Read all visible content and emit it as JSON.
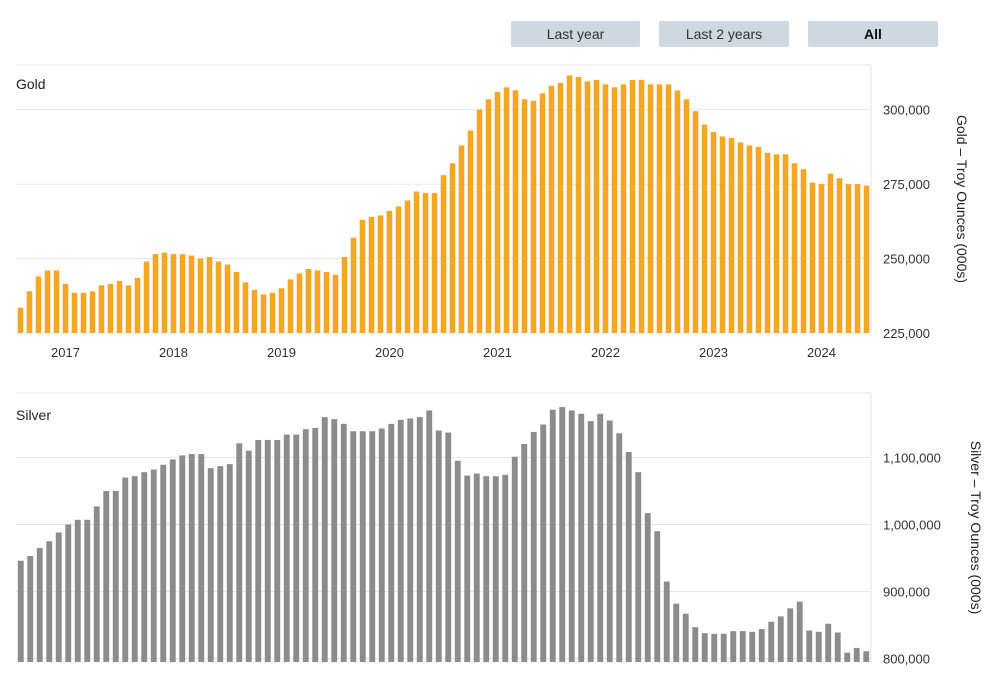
{
  "range_selector": {
    "buttons": [
      {
        "label": "Last year",
        "active": false
      },
      {
        "label": "Last 2 years",
        "active": false
      },
      {
        "label": "All",
        "active": true
      }
    ]
  },
  "chart_data": [
    {
      "type": "bar",
      "title": "Gold",
      "ylabel": "Gold – Troy Ounces (000s)",
      "color": "#f5a623",
      "ylim": [
        225000,
        315000
      ],
      "yticks": [
        225000,
        250000,
        275000,
        300000
      ],
      "ytick_labels": [
        "225,000",
        "250,000",
        "275,000",
        "300,000"
      ],
      "xticks": [
        "2017",
        "2018",
        "2019",
        "2020",
        "2021",
        "2022",
        "2023",
        "2024"
      ],
      "values": [
        233500,
        239000,
        244000,
        246000,
        246000,
        241500,
        238500,
        238500,
        239000,
        241000,
        241500,
        242500,
        241000,
        243500,
        249000,
        251500,
        252000,
        251500,
        251500,
        251000,
        250000,
        250500,
        249000,
        248000,
        245500,
        242000,
        239500,
        238000,
        238500,
        240000,
        243000,
        245000,
        246500,
        246000,
        245500,
        244500,
        250500,
        257000,
        263000,
        264000,
        264500,
        266000,
        267500,
        269500,
        272500,
        272000,
        272000,
        278000,
        282000,
        288000,
        293000,
        300000,
        303500,
        306000,
        307500,
        306500,
        303500,
        303000,
        305500,
        308000,
        309000,
        311500,
        311000,
        309500,
        310000,
        308500,
        307500,
        308500,
        310000,
        310000,
        308500,
        308500,
        308500,
        306500,
        303500,
        299500,
        295000,
        292500,
        291000,
        290500,
        289000,
        288000,
        287500,
        285500,
        285000,
        285000,
        282000,
        280000,
        275500,
        275000,
        278500,
        277000,
        275000,
        275000,
        274500
      ]
    },
    {
      "type": "bar",
      "title": "Silver",
      "ylabel": "Silver – Troy Ounces (000s)",
      "color": "#8c8c8c",
      "ylim": [
        795000,
        1196000
      ],
      "yticks": [
        800000,
        900000,
        1000000,
        1100000
      ],
      "ytick_labels": [
        "800,000",
        "900,000",
        "1,000,000",
        "1,100,000"
      ],
      "values": [
        946000,
        953000,
        965000,
        975000,
        988000,
        1000000,
        1007000,
        1007000,
        1027000,
        1050000,
        1050000,
        1070000,
        1072000,
        1078000,
        1082000,
        1089000,
        1097000,
        1103000,
        1105000,
        1105000,
        1084000,
        1087000,
        1090000,
        1121000,
        1110000,
        1126000,
        1126000,
        1126000,
        1134000,
        1134000,
        1142000,
        1144000,
        1160000,
        1157000,
        1150000,
        1139000,
        1139000,
        1139000,
        1143000,
        1150000,
        1156000,
        1158000,
        1160000,
        1170000,
        1140000,
        1137000,
        1095000,
        1073000,
        1076000,
        1072000,
        1072000,
        1074000,
        1101000,
        1120000,
        1138000,
        1149000,
        1171000,
        1175000,
        1170000,
        1165000,
        1154000,
        1165000,
        1155000,
        1136000,
        1108000,
        1078000,
        1017000,
        990000,
        915000,
        882000,
        867000,
        847000,
        838000,
        837000,
        837000,
        841000,
        841000,
        840000,
        844000,
        855000,
        863000,
        875000,
        885000,
        842000,
        840000,
        852000,
        839000,
        809000,
        816000,
        811000
      ]
    }
  ]
}
